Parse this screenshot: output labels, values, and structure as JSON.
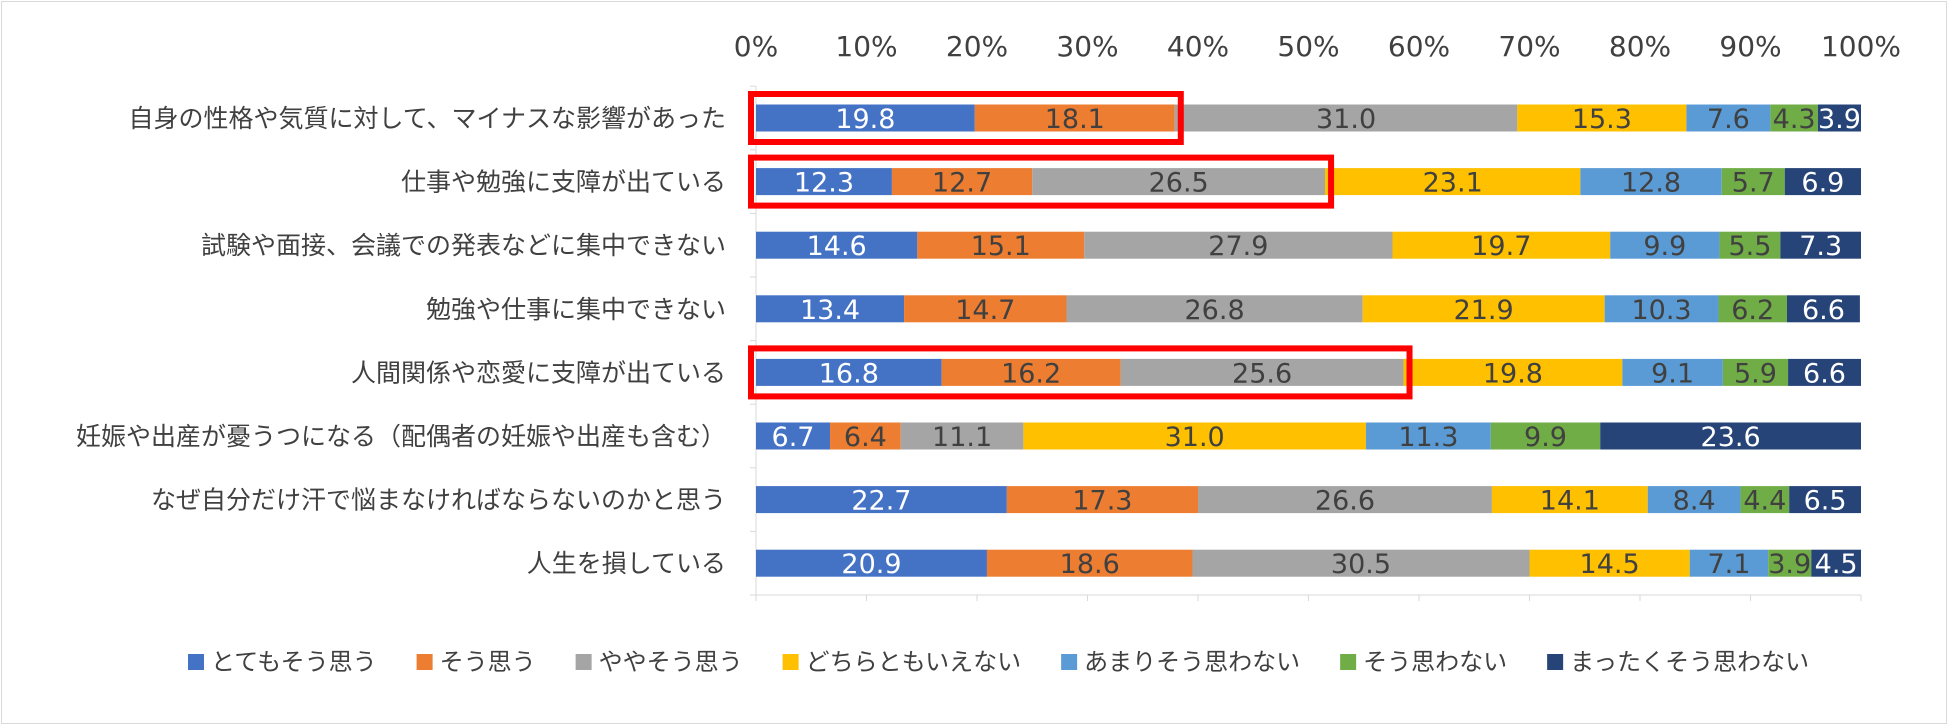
{
  "chart_data": {
    "type": "bar",
    "orientation": "horizontal",
    "stacked": "percent",
    "title": "",
    "xlabel": "",
    "ylabel": "",
    "xlim": [
      0,
      100
    ],
    "grid": false,
    "legend": "bottom",
    "x_ticks": [
      "0%",
      "10%",
      "20%",
      "30%",
      "40%",
      "50%",
      "60%",
      "70%",
      "80%",
      "90%",
      "100%"
    ],
    "categories": [
      "自身の性格や気質に対して、マイナスな影響があった",
      "仕事や勉強に支障が出ている",
      "試験や面接、会議での発表などに集中できない",
      "勉強や仕事に集中できない",
      "人間関係や恋愛に支障が出ている",
      "妊娠や出産が憂うつになる（配偶者の妊娠や出産も含む）",
      "なぜ自分だけ汗で悩まなければならないのかと思う",
      "人生を損している"
    ],
    "series": [
      {
        "name": "とてもそう思う",
        "color": "#4472C4",
        "label_color": "#ffffff",
        "values": [
          19.8,
          12.3,
          14.6,
          13.4,
          16.8,
          6.7,
          22.7,
          20.9
        ]
      },
      {
        "name": "そう思う",
        "color": "#ED7D31",
        "label_color": "#404040",
        "values": [
          18.1,
          12.7,
          15.1,
          14.7,
          16.2,
          6.4,
          17.3,
          18.6
        ]
      },
      {
        "name": "ややそう思う",
        "color": "#A5A5A5",
        "label_color": "#404040",
        "values": [
          31.0,
          26.5,
          27.9,
          26.8,
          25.6,
          11.1,
          26.6,
          30.5
        ]
      },
      {
        "name": "どちらともいえない",
        "color": "#FFC000",
        "label_color": "#404040",
        "values": [
          15.3,
          23.1,
          19.7,
          21.9,
          19.8,
          31.0,
          14.1,
          14.5
        ]
      },
      {
        "name": "あまりそう思わない",
        "color": "#5B9BD5",
        "label_color": "#404040",
        "values": [
          7.6,
          12.8,
          9.9,
          10.3,
          9.1,
          11.3,
          8.4,
          7.1
        ]
      },
      {
        "name": "そう思わない",
        "color": "#70AD47",
        "label_color": "#404040",
        "values": [
          4.3,
          5.7,
          5.5,
          6.2,
          5.9,
          9.9,
          4.4,
          3.9
        ]
      },
      {
        "name": "まったくそう思わない",
        "color": "#264478",
        "label_color": "#ffffff",
        "values": [
          3.9,
          6.9,
          7.3,
          6.6,
          6.6,
          23.6,
          6.5,
          4.5
        ]
      }
    ],
    "highlights": [
      {
        "category_index": 0,
        "series_count": 2,
        "color": "#FF0000"
      },
      {
        "category_index": 1,
        "series_count": 3,
        "color": "#FF0000"
      },
      {
        "category_index": 4,
        "series_count": 3,
        "color": "#FF0000"
      }
    ]
  }
}
